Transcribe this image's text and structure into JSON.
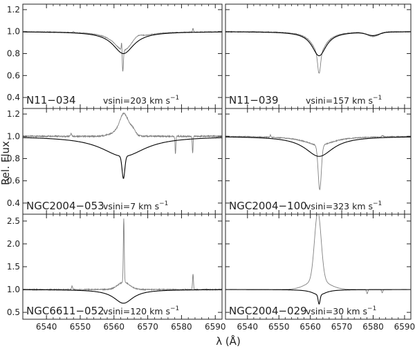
{
  "chart_data": {
    "type": "line",
    "xlabel": "λ (Å)",
    "ylabel": "Rel. Flux",
    "xlim": [
      6533,
      6592
    ],
    "xticks": [
      6540,
      6550,
      6560,
      6570,
      6580,
      6590
    ],
    "grid": false,
    "series_style": {
      "observed": {
        "color": "#808080"
      },
      "model": {
        "color": "#000000"
      }
    },
    "rows": [
      {
        "ylim": [
          0.3,
          1.25
        ],
        "yticks": [
          "0.4",
          "0.6",
          "0.8",
          "1.0",
          "1.2"
        ]
      },
      {
        "ylim": [
          0.3,
          1.25
        ],
        "yticks": [
          "0.4",
          "0.6",
          "0.8",
          "1.0",
          "1.2"
        ]
      },
      {
        "ylim": [
          0.35,
          2.65
        ],
        "yticks": [
          "0.5",
          "1.0",
          "1.5",
          "2.0",
          "2.5"
        ]
      }
    ],
    "panels": [
      {
        "id": "n11-034",
        "row": 0,
        "col": 0,
        "star": "N11−034",
        "vsini_label": "vsini=203 km s",
        "model": {
          "depth": 0.2,
          "width": 3.8,
          "core": 0.0,
          "core_width": 0.5
        },
        "observed": {
          "depth": 0.17,
          "width": 3.5,
          "lines": [
            {
              "x": 6562.6,
              "a": -0.2,
              "w": 0.18
            },
            {
              "x": 6562.3,
              "a": 0.1,
              "w": 0.12
            },
            {
              "x": 6567,
              "a": 0.03,
              "w": 1.2
            },
            {
              "x": 6583.4,
              "a": 0.035,
              "w": 0.15
            },
            {
              "x": 6548,
              "a": 0.01,
              "w": 0.15
            }
          ],
          "noise": 0.006
        }
      },
      {
        "id": "n11-039",
        "row": 0,
        "col": 1,
        "star": "N11−039",
        "vsini_label": "vsini=157 km s",
        "model": {
          "depth": 0.22,
          "width": 2.8,
          "core": 0.0,
          "core_width": 0.5,
          "extra": [
            {
              "x": 6580,
              "a": -0.03,
              "w": 2.0
            }
          ]
        },
        "observed": {
          "depth": 0.2,
          "width": 2.6,
          "lines": [
            {
              "x": 6562.8,
              "a": -0.18,
              "w": 0.45
            },
            {
              "x": 6580,
              "a": -0.04,
              "w": 1.8
            },
            {
              "x": 6549,
              "a": 0.005,
              "w": 0.2
            }
          ],
          "noise": 0.006
        }
      },
      {
        "id": "ngc2004-053",
        "row": 1,
        "col": 0,
        "star": "NGC2004−053",
        "vsini_label": "vsini=7 km s",
        "model": {
          "depth": 0.18,
          "width": 8.0,
          "core": 0.2,
          "core_width": 0.4
        },
        "observed": {
          "depth": 0.0,
          "width": 1.0,
          "lines": [
            {
              "x": 6563,
              "a": 0.16,
              "w": 1.2
            },
            {
              "x": 6562,
              "a": 0.05,
              "w": 2.5
            },
            {
              "x": 6565.5,
              "a": 0.05,
              "w": 0.8
            },
            {
              "x": 6578.2,
              "a": -0.16,
              "w": 0.12
            },
            {
              "x": 6583.3,
              "a": -0.15,
              "w": 0.12
            },
            {
              "x": 6547.3,
              "a": 0.03,
              "w": 0.15
            }
          ],
          "noise": 0.012
        }
      },
      {
        "id": "ngc2004-100",
        "row": 1,
        "col": 1,
        "star": "NGC2004−100",
        "vsini_label": "vsini=323 km s",
        "model": {
          "depth": 0.18,
          "width": 5.5,
          "core": 0.0,
          "core_width": 0.5
        },
        "observed": {
          "depth": 0.08,
          "width": 5.5,
          "lines": [
            {
              "x": 6563.0,
              "a": -0.4,
              "w": 0.5
            },
            {
              "x": 6547.3,
              "a": 0.02,
              "w": 0.15
            },
            {
              "x": 6583,
              "a": 0.01,
              "w": 0.3
            }
          ],
          "noise": 0.007
        }
      },
      {
        "id": "ngc6611-052",
        "row": 2,
        "col": 0,
        "star": "NGC6611−052",
        "vsini_label": "vsini=120 km s",
        "model": {
          "depth": 0.3,
          "width": 3.5,
          "core": 0.0,
          "core_width": 0.5
        },
        "observed": {
          "depth": 0.0,
          "width": 1.0,
          "lines": [
            {
              "x": 6562.9,
              "a": 1.4,
              "w": 0.14
            },
            {
              "x": 6562.9,
              "a": 0.16,
              "w": 1.8
            },
            {
              "x": 6583.4,
              "a": 0.34,
              "w": 0.14
            },
            {
              "x": 6547.6,
              "a": 0.08,
              "w": 0.14
            }
          ],
          "noise": 0.02
        }
      },
      {
        "id": "ngc2004-029",
        "row": 2,
        "col": 1,
        "star": "NGC2004−029",
        "vsini_label": "vsini=30 km s",
        "model": {
          "depth": 0.12,
          "width": 2.5,
          "core": 0.2,
          "core_width": 0.3
        },
        "observed": {
          "depth": 0.0,
          "width": 1.0,
          "lines": [
            {
              "x": 6562.4,
              "a": 1.5,
              "w": 1.05
            },
            {
              "x": 6562.4,
              "a": 0.2,
              "w": 3.5
            },
            {
              "x": 6578.1,
              "a": -0.09,
              "w": 0.2
            },
            {
              "x": 6582.9,
              "a": -0.07,
              "w": 0.2
            }
          ],
          "noise": 0.004
        }
      }
    ]
  }
}
